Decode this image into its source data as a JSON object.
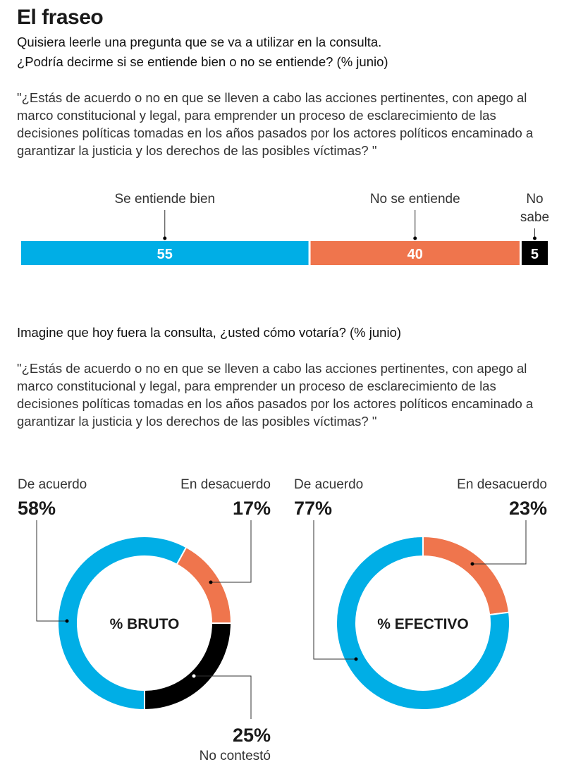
{
  "title": "El fraseo",
  "section1": {
    "question_line1": "Quisiera leerle una pregunta que se va a utilizar en la consulta.",
    "question_line2": "¿Podría decirme si se entiende bien o no se entiende? (% junio)",
    "quote": "\"¿Estás de acuerdo o no en que se lleven a cabo las acciones pertinentes, con apego al marco constitucional y legal, para emprender un proceso de esclarecimiento de las decisiones políticas tomadas en los años pasados por los actores políticos encaminado a garantizar la justicia y los derechos de las posibles víctimas? \""
  },
  "section2": {
    "question": "Imagine que hoy fuera la consulta, ¿usted cómo votaría? (% junio)",
    "quote": "\"¿Estás de acuerdo o no en que se lleven a cabo las acciones pertinentes, con apego al marco constitucional y legal, para emprender un proceso de esclarecimiento de las decisiones políticas tomadas en los años pasados por los actores políticos encaminado a garantizar la justicia y los derechos de las posibles víctimas? \""
  },
  "chart_data": [
    {
      "type": "bar",
      "orientation": "horizontal-stacked",
      "categories": [
        "Se entiende bien",
        "No se entiende",
        "No sabe"
      ],
      "label_lines": {
        "No sabe": [
          "No",
          "sabe"
        ]
      },
      "values": [
        55,
        40,
        5
      ],
      "value_labels": [
        "55",
        "40",
        "5"
      ],
      "colors": [
        "#00aee6",
        "#ef754d",
        "#000000"
      ]
    },
    {
      "type": "pie",
      "variant": "donut",
      "center_label": "% BRUTO",
      "categories": [
        "De acuerdo",
        "En desacuerdo",
        "No contestó"
      ],
      "values": [
        58,
        17,
        25
      ],
      "value_labels": [
        "58%",
        "17%",
        "25%"
      ],
      "colors": [
        "#00aee6",
        "#ef754d",
        "#000000"
      ]
    },
    {
      "type": "pie",
      "variant": "donut",
      "center_label": "% EFECTIVO",
      "categories": [
        "De acuerdo",
        "En desacuerdo"
      ],
      "values": [
        77,
        23
      ],
      "value_labels": [
        "77%",
        "23%"
      ],
      "colors": [
        "#00aee6",
        "#ef754d"
      ]
    }
  ]
}
